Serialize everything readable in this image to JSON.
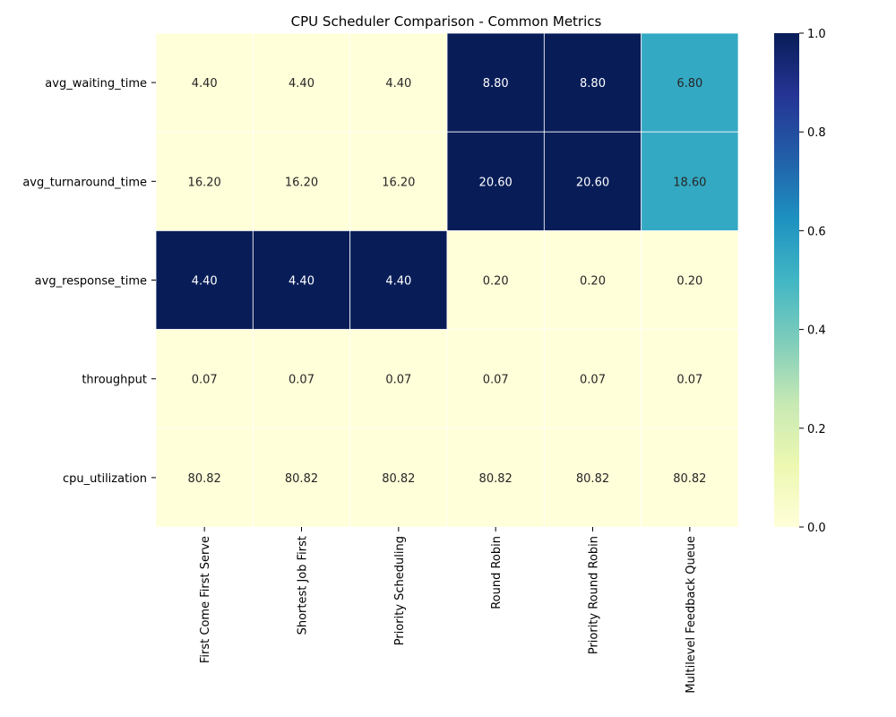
{
  "chart_data": {
    "type": "heatmap",
    "title": "CPU Scheduler Comparison - Common Metrics",
    "columns": [
      "First Come First Serve",
      "Shortest Job First",
      "Priority Scheduling",
      "Round Robin",
      "Priority Round Robin",
      "Multilevel Feedback Queue"
    ],
    "rows": [
      "avg_waiting_time",
      "avg_turnaround_time",
      "avg_response_time",
      "throughput",
      "cpu_utilization"
    ],
    "labels": [
      [
        "4.40",
        "4.40",
        "4.40",
        "8.80",
        "8.80",
        "6.80"
      ],
      [
        "16.20",
        "16.20",
        "16.20",
        "20.60",
        "20.60",
        "18.60"
      ],
      [
        "4.40",
        "4.40",
        "4.40",
        "0.20",
        "0.20",
        "0.20"
      ],
      [
        "0.07",
        "0.07",
        "0.07",
        "0.07",
        "0.07",
        "0.07"
      ],
      [
        "80.82",
        "80.82",
        "80.82",
        "80.82",
        "80.82",
        "80.82"
      ]
    ],
    "normalized": [
      [
        0,
        0,
        0,
        1,
        1,
        0.545
      ],
      [
        0,
        0,
        0,
        1,
        1,
        0.545
      ],
      [
        1,
        1,
        1,
        0,
        0,
        0
      ],
      [
        0,
        0,
        0,
        0,
        0,
        0
      ],
      [
        0,
        0,
        0,
        0,
        0,
        0
      ]
    ],
    "colormap": "YlGnBu",
    "colorbar": {
      "range": [
        0,
        1
      ],
      "ticks": [
        "0.0",
        "0.2",
        "0.4",
        "0.6",
        "0.8",
        "1.0"
      ]
    }
  }
}
